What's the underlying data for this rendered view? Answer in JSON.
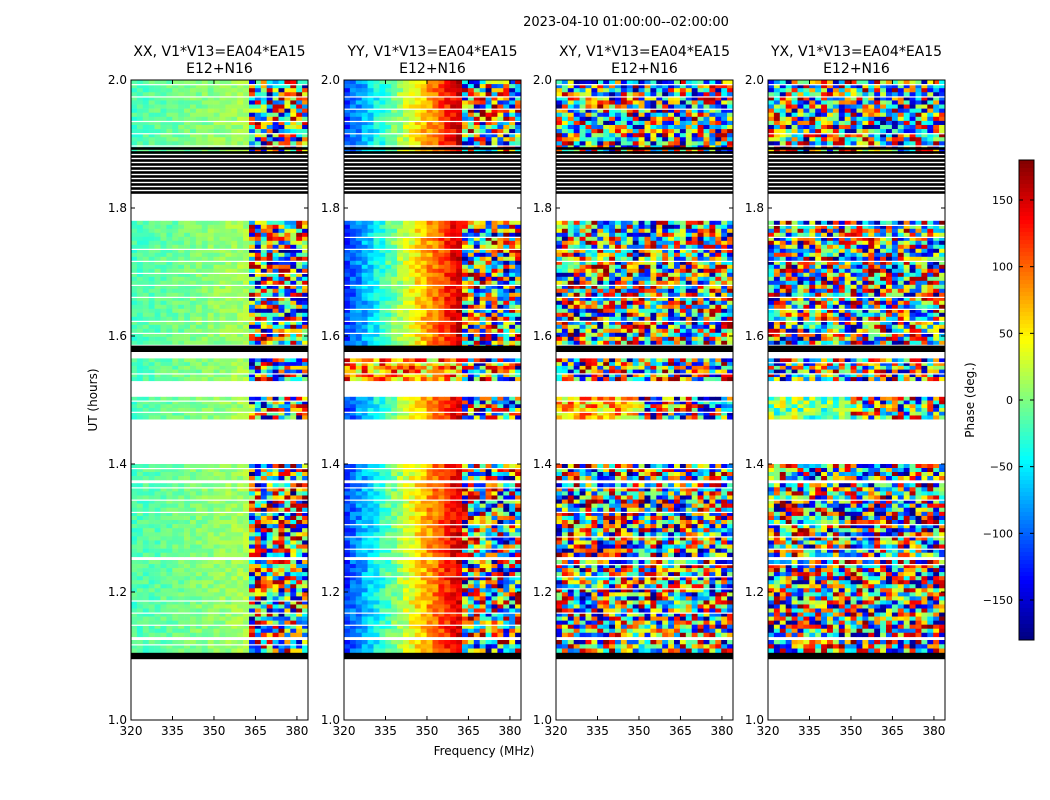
{
  "chart_data": {
    "type": "heatmap",
    "suptitle": "2023-04-10  01:00:00--02:00:00",
    "xlabel": "Frequency (MHz)",
    "ylabel": "UT (hours)",
    "xlim": [
      320,
      384
    ],
    "ylim": [
      1.0,
      2.0
    ],
    "xticks": [
      320,
      335,
      350,
      365,
      380
    ],
    "yticks": [
      1.0,
      1.2,
      1.4,
      1.6,
      1.8,
      2.0
    ],
    "panels": [
      {
        "name": "XX",
        "title_line1": "XX, V1*V13=EA04*EA15",
        "title_line2": "E12+N16",
        "base_phase": -20
      },
      {
        "name": "YY",
        "title_line1": "YY, V1*V13=EA04*EA15",
        "title_line2": "E12+N16",
        "base_phase": -120
      },
      {
        "name": "XY",
        "title_line1": "XY, V1*V13=EA04*EA15",
        "title_line2": "E12+N16",
        "base_phase": 0
      },
      {
        "name": "YX",
        "title_line1": "YX, V1*V13=EA04*EA15",
        "title_line2": "E12+N16",
        "base_phase": 0
      }
    ],
    "data_blocks_ut": [
      [
        1.885,
        2.0
      ],
      [
        1.58,
        1.78
      ],
      [
        1.53,
        1.565
      ],
      [
        1.47,
        1.505
      ],
      [
        1.375,
        1.4
      ],
      [
        1.255,
        1.37
      ],
      [
        1.13,
        1.25
      ],
      [
        1.105,
        1.125
      ]
    ],
    "flagged_ut_bands": [
      [
        1.82,
        1.895
      ],
      [
        1.575,
        1.585
      ],
      [
        1.095,
        1.105
      ]
    ],
    "colorbar": {
      "label": "Phase (deg.)",
      "range": [
        -180,
        180
      ],
      "ticks": [
        -150,
        -100,
        -50,
        0,
        50,
        100,
        150
      ],
      "tick_labels": [
        "−150",
        "−100",
        "−50",
        "0",
        "50",
        "100",
        "150"
      ],
      "colormap": "jet"
    }
  }
}
